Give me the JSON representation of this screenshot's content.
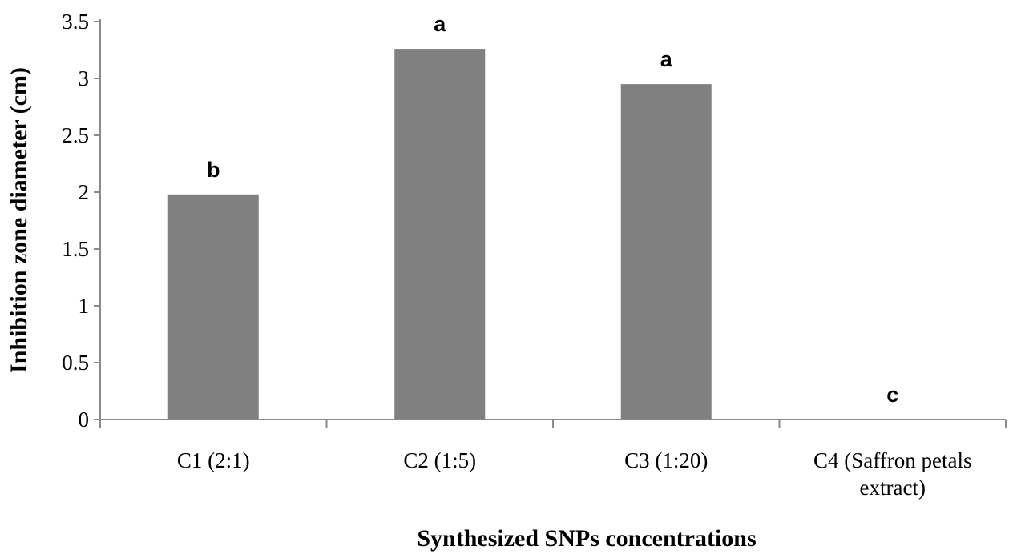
{
  "chart_data": {
    "type": "bar",
    "categories": [
      [
        "C1 (2:1)"
      ],
      [
        "C2 (1:5)"
      ],
      [
        "C3 (1:20)"
      ],
      [
        "C4 (Saffron petals",
        "extract)"
      ]
    ],
    "values": [
      1.98,
      3.26,
      2.95,
      0
    ],
    "significance_labels": [
      "b",
      "a",
      "a",
      "c"
    ],
    "xlabel": "Synthesized SNPs concentrations",
    "ylabel": "Inhibition zone diameter (cm)",
    "ylim": [
      0,
      3.5
    ],
    "yticks": [
      "0",
      "0.5",
      "1",
      "1.5",
      "2",
      "2.5",
      "3",
      "3.5"
    ],
    "grid": false,
    "bar_color": "#808080"
  }
}
